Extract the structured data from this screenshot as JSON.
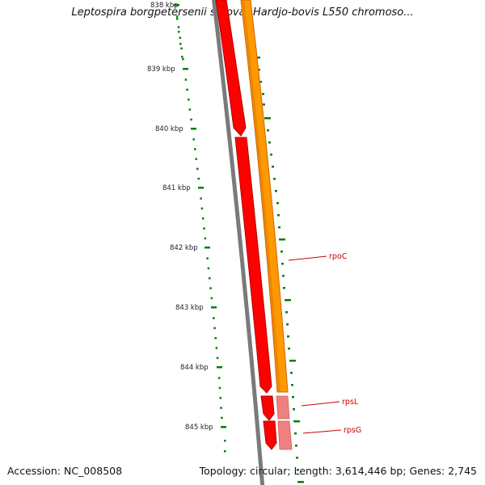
{
  "title": "Leptospira borgpetersenii serovar Hardjo-bovis L550 chromoso...",
  "footer": {
    "accession": "Accession: NC_008508",
    "summary": "Topology: circular; Length: 3,614,446 bp; Genes: 2,745"
  },
  "colors": {
    "backbone": "#7a7a7a",
    "gene_red": "#ff0000",
    "gene_red_dark": "#b00000",
    "gene_pink": "#f08080",
    "cds_orange": "#ff9900",
    "cds_orange_dark": "#cc6600",
    "gc_skew": "#008000",
    "label_red": "#cc0000"
  },
  "axis": {
    "labels": [
      "838 kbp",
      "839 kbp",
      "840 kbp",
      "841 kbp",
      "842 kbp",
      "843 kbp",
      "844 kbp",
      "845 kbp"
    ]
  },
  "genes": [
    {
      "name": "rpoC",
      "color": "gene_red"
    },
    {
      "name": "rpsL",
      "color": "gene_red"
    },
    {
      "name": "rpsG",
      "color": "gene_red"
    }
  ],
  "gc_content_track": "green dotted"
}
